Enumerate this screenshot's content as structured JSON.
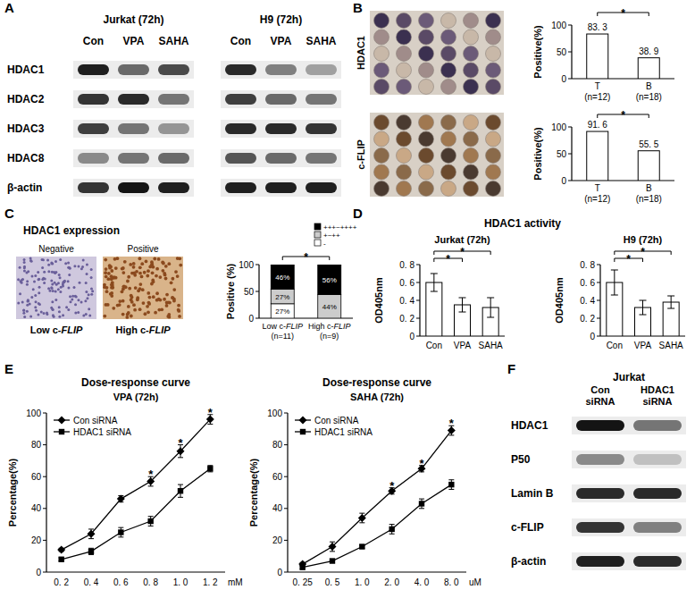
{
  "panel_labels": [
    "A",
    "B",
    "C",
    "D",
    "E",
    "F"
  ],
  "blots": [
    {
      "group_titles": [
        "Jurkat (72h)",
        "H9 (72h)"
      ],
      "lanes": [
        [
          "Con",
          "VPA",
          "SAHA"
        ],
        [
          "Con",
          "VPA",
          "SAHA"
        ]
      ],
      "rows": [
        {
          "protein": "HDAC1",
          "intensities": [
            [
              0.95,
              0.6,
              0.75
            ],
            [
              0.9,
              0.5,
              0.35
            ]
          ]
        },
        {
          "protein": "HDAC2",
          "intensities": [
            [
              0.85,
              0.9,
              0.55
            ],
            [
              0.8,
              0.6,
              0.55
            ]
          ]
        },
        {
          "protein": "HDAC3",
          "intensities": [
            [
              0.8,
              0.55,
              0.4
            ],
            [
              0.9,
              0.9,
              0.85
            ]
          ]
        },
        {
          "protein": "HDAC8",
          "intensities": [
            [
              0.45,
              0.55,
              0.6
            ],
            [
              0.7,
              0.6,
              0.55
            ]
          ]
        },
        {
          "protein": "β-actin",
          "intensities": [
            [
              0.85,
              1.0,
              0.95
            ],
            [
              0.95,
              0.95,
              0.95
            ]
          ]
        }
      ]
    },
    {
      "group_titles": [
        "Jurkat"
      ],
      "lanes": [
        [
          "Con\nsiRNA",
          "HDAC1\nsiRNA"
        ]
      ],
      "rows": [
        {
          "protein": "HDAC1",
          "intensities": [
            [
              1.0,
              0.55
            ]
          ]
        },
        {
          "protein": "P50",
          "intensities": [
            [
              0.45,
              0.2
            ]
          ]
        },
        {
          "protein": "Lamin B",
          "intensities": [
            [
              0.9,
              0.9
            ]
          ]
        },
        {
          "protein": "c-FLIP",
          "intensities": [
            [
              0.85,
              0.5
            ]
          ]
        },
        {
          "protein": "β-actin",
          "intensities": [
            [
              0.95,
              0.9
            ]
          ]
        }
      ]
    }
  ],
  "chart_data": [
    {
      "type": "bar",
      "image_label": "HDAC1",
      "categories": [
        "T\n(n=12)",
        "B\n(n=18)"
      ],
      "values": [
        83.3,
        38.9
      ],
      "value_labels": [
        "83. 3",
        "38. 9"
      ],
      "data_labels": true,
      "color": "#ffffff",
      "ylabel": "Positive(%)",
      "ylim": [
        0,
        100
      ],
      "yticks": [
        0,
        50,
        100
      ],
      "annotations": [
        {
          "text": "*",
          "between": [
            0,
            1
          ]
        }
      ]
    },
    {
      "type": "bar",
      "image_label": "c-FLIP",
      "categories": [
        "T\n(n=12)",
        "B\n(n=18)"
      ],
      "values": [
        91.6,
        55.5
      ],
      "value_labels": [
        "91. 6",
        "55. 5"
      ],
      "data_labels": true,
      "color": "#ffffff",
      "ylabel": "Positive(%)",
      "ylim": [
        0,
        100
      ],
      "yticks": [
        0,
        50,
        100
      ],
      "annotations": [
        {
          "text": "*",
          "between": [
            0,
            1
          ]
        }
      ]
    },
    {
      "type": "bar",
      "stacked": true,
      "title": "HDAC1 expression",
      "image_labels": [
        "Negative",
        "Positive"
      ],
      "image_captions": [
        "Low c-FLIP",
        "High c-FLIP"
      ],
      "categories": [
        "Low c-FLIP\n(n=11)",
        "High c-FLIP\n(n=9)"
      ],
      "series": [
        {
          "name": "-",
          "color": "#ffffff",
          "values": [
            27,
            0
          ],
          "value_labels": [
            "27%",
            null
          ]
        },
        {
          "name": "+~++",
          "color": "#cccccc",
          "values": [
            27,
            44
          ],
          "value_labels": [
            "27%",
            "44%"
          ]
        },
        {
          "name": "+++~++++",
          "color": "#000000",
          "values": [
            46,
            56
          ],
          "value_labels": [
            "46%",
            "56%"
          ]
        }
      ],
      "data_labels": true,
      "legend": "top-right",
      "ylabel": "Positive (%)",
      "ylim": [
        0,
        100
      ],
      "yticks": [
        0,
        50,
        100
      ],
      "annotations": [
        {
          "text": "*",
          "between": [
            0,
            1
          ]
        }
      ]
    },
    {
      "type": "bar",
      "header": "HDAC1 activity",
      "title": "Jurkat (72h)",
      "categories": [
        "Con",
        "VPA",
        "SAHA"
      ],
      "values": [
        0.6,
        0.35,
        0.32
      ],
      "errors": [
        0.1,
        0.08,
        0.11
      ],
      "color": "#ffffff",
      "ylabel": "OD405nm",
      "ylim": [
        0,
        0.8
      ],
      "yticks": [
        0,
        {
          "value": 0.2,
          "label": "0. 2"
        },
        {
          "value": 0.4,
          "label": "0. 4"
        },
        {
          "value": 0.6,
          "label": "0. 6"
        },
        {
          "value": 0.8,
          "label": "0. 8"
        }
      ],
      "annotations": [
        {
          "text": "*",
          "between": [
            0,
            1
          ]
        },
        {
          "text": "*",
          "between": [
            0,
            2
          ]
        }
      ]
    },
    {
      "type": "bar",
      "title": "H9 (72h)",
      "categories": [
        "Con",
        "VPA",
        "SAHA"
      ],
      "values": [
        0.6,
        0.32,
        0.38
      ],
      "errors": [
        0.14,
        0.08,
        0.07
      ],
      "color": "#ffffff",
      "ylabel": "OD405nm",
      "ylim": [
        0,
        0.8
      ],
      "yticks": [
        0,
        {
          "value": 0.2,
          "label": "0. 2"
        },
        {
          "value": 0.4,
          "label": "0. 4"
        },
        {
          "value": 0.6,
          "label": "0. 6"
        },
        {
          "value": 0.8,
          "label": "0. 8"
        }
      ],
      "annotations": [
        {
          "text": "*",
          "between": [
            0,
            1
          ]
        },
        {
          "text": "*",
          "between": [
            0,
            2
          ]
        }
      ]
    },
    {
      "type": "line",
      "header": "Dose-response curve",
      "title": "VPA (72h)",
      "categories": [
        "0. 2",
        "0. 4",
        "0. 6",
        "0. 8",
        "1. 0",
        "1. 2"
      ],
      "xlabel": "mM",
      "series": [
        {
          "name": "Con siRNA",
          "color": "#000000",
          "marker": "diamond",
          "values": [
            14,
            24,
            46,
            57,
            76,
            96
          ],
          "errors": [
            1,
            3,
            2,
            3,
            4,
            3
          ]
        },
        {
          "name": "HDAC1 siRNA",
          "color": "#000000",
          "marker": "square",
          "values": [
            8,
            13,
            25,
            32,
            51,
            65
          ],
          "errors": [
            1,
            2,
            3,
            3,
            4,
            2
          ]
        }
      ],
      "legend": "top-left",
      "ylabel": "Percentage(%)",
      "ylim": [
        0,
        100
      ],
      "yticks": [
        0,
        20,
        40,
        60,
        80,
        100
      ],
      "annotations": [
        {
          "text": "*",
          "at": 3
        },
        {
          "text": "*",
          "at": 4
        },
        {
          "text": "*",
          "at": 5
        }
      ]
    },
    {
      "type": "line",
      "header": "Dose-response curve",
      "title": "SAHA (72h)",
      "categories": [
        "0. 25",
        "0. 5",
        "1. 0",
        "2. 0",
        "4. 0",
        "8. 0"
      ],
      "xlabel": "uM",
      "series": [
        {
          "name": "Con siRNA",
          "color": "#000000",
          "marker": "diamond",
          "values": [
            5,
            16,
            34,
            51,
            65,
            89
          ],
          "errors": [
            1,
            3,
            3,
            2,
            2,
            3
          ]
        },
        {
          "name": "HDAC1 siRNA",
          "color": "#000000",
          "marker": "square",
          "values": [
            3,
            7,
            16,
            27,
            43,
            55
          ],
          "errors": [
            1,
            1,
            1,
            3,
            3,
            3
          ]
        }
      ],
      "legend": "top-left",
      "ylabel": "Percentage(%)",
      "ylim": [
        0,
        100
      ],
      "yticks": [
        0,
        20,
        40,
        60,
        80,
        100
      ],
      "annotations": [
        {
          "text": "*",
          "at": 3
        },
        {
          "text": "*",
          "at": 4
        },
        {
          "text": "*",
          "at": 5
        }
      ]
    }
  ]
}
